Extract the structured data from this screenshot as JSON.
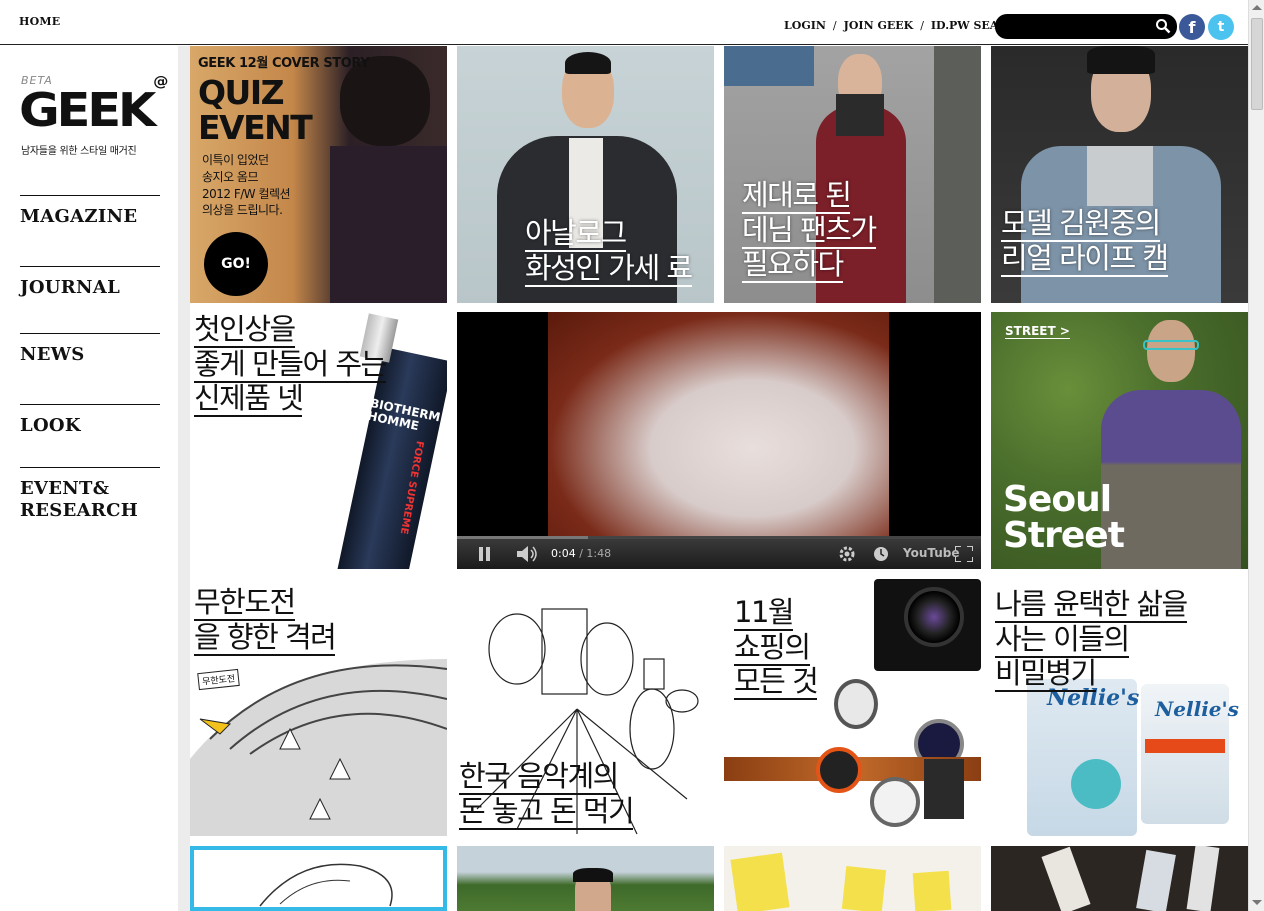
{
  "topbar": {
    "home": "HOME",
    "links": [
      "LOGIN",
      "JOIN GEEK",
      "ID.PW SEARCH"
    ],
    "separator": "/",
    "search_placeholder": "",
    "facebook_glyph": "f",
    "twitter_glyph": "t"
  },
  "brand": {
    "beta": "BETA",
    "logo": "GEEK",
    "logo_mark": "@",
    "tagline": "남자들을 위한 스타일 매거진"
  },
  "nav": [
    "MAGAZINE",
    "JOURNAL",
    "NEWS",
    "LOOK",
    "EVENT&\nRESEARCH"
  ],
  "tiles": {
    "cover": {
      "header": "GEEK 12월 COVER STORY",
      "title": "QUIZ\nEVENT",
      "body": "이특이 입었던\n송지오 옴므\n2012 F/W 컬렉션\n의상을 드립니다.",
      "button": "GO!"
    },
    "analog": "아날로그\n화성인 가세 료",
    "denim": "제대로 된\n데님 팬츠가\n필요하다",
    "model": "모델 김원중의\n리얼 라이프 캠",
    "skin": "첫인상을\n좋게 만들어 주는\n신제품 넷",
    "product_brand": "BIOTHERM\nHOMME",
    "product_name": "FORCE SUPREME",
    "street_label": "STREET >",
    "street_title": "Seoul\nStreet",
    "challenge": "무한도전\n을 향한 격려",
    "challenge_flag": "무한도전",
    "music": "한국 음악계의\n돈 놓고 돈 먹기",
    "shopping": "11월\n쇼핑의\n모든 것",
    "secret": "나름 윤택한 삶을\n사는 이들의\n비밀병기",
    "nellies": "Nellie's"
  },
  "video": {
    "time_current": "0:04",
    "time_separator": "/",
    "time_total": "1:48",
    "progress": 0.037,
    "buffered": 0.25,
    "youtube": "YouTube"
  },
  "colors": {
    "accent": "#000000",
    "facebook": "#3b5998",
    "twitter": "#4cc2ee",
    "progress": "#cc0000"
  }
}
